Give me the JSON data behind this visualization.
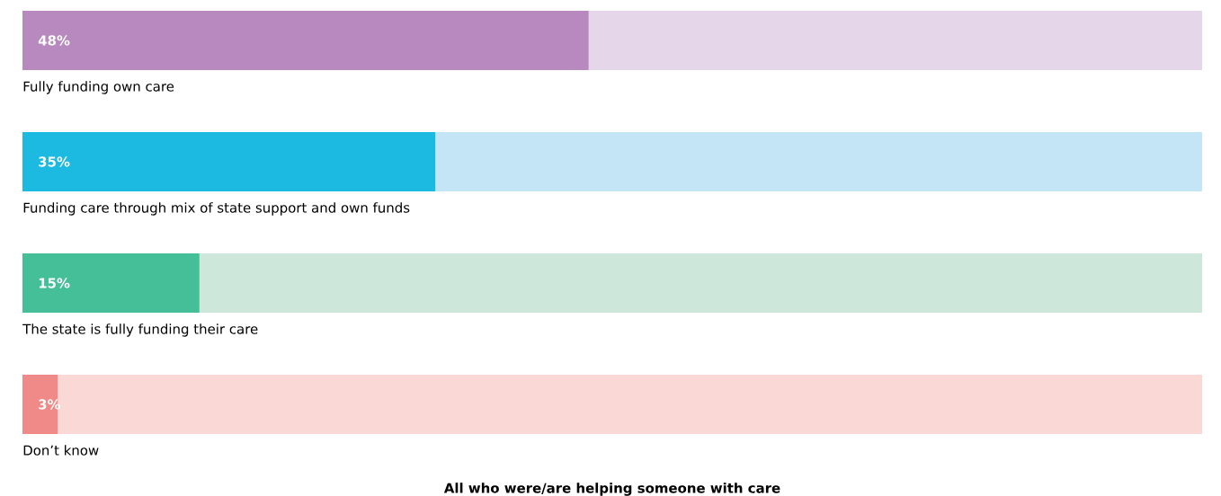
{
  "chart_data": {
    "type": "bar",
    "orientation": "horizontal",
    "stacked": true,
    "xlabel": "All who were/are helping someone with care",
    "categories": [
      "Fully funding own care",
      "Funding care through mix of state support and own funds",
      "The state is fully funding their care",
      "Don’t know"
    ],
    "series": [
      {
        "colors": [
          "#b889be",
          "#1cb9e0",
          "#45bf98",
          "#ef8a88"
        ],
        "values": [
          48,
          35,
          15,
          3
        ],
        "value_labels": [
          "48%",
          "35%",
          "15%",
          "3%"
        ]
      },
      {
        "colors": [
          "#e5d6ea",
          "#c3e5f5",
          "#cde7db",
          "#f9d8d5"
        ],
        "values": [
          52,
          65,
          85,
          97
        ]
      }
    ]
  }
}
